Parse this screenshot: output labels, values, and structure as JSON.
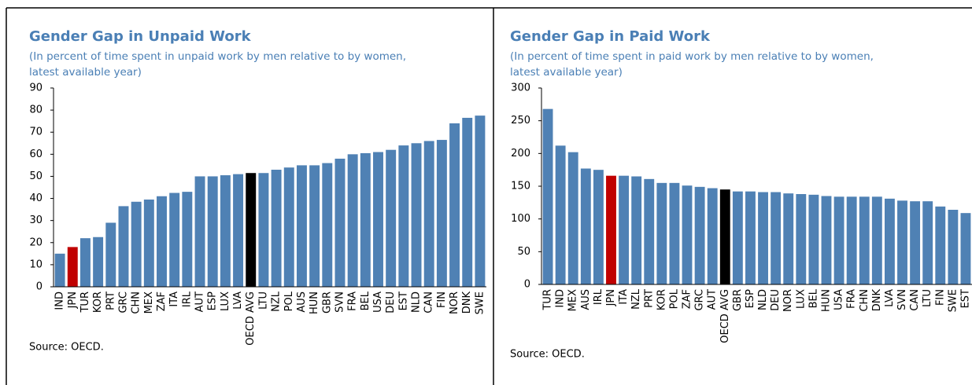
{
  "chart_data": [
    {
      "type": "bar",
      "title": "Gender Gap in Unpaid Work",
      "subtitle": [
        "(In percent of time spent in unpaid work by men relative to by women,",
        "latest available year)"
      ],
      "categories": [
        "IND",
        "JPN",
        "TUR",
        "KOR",
        "PRT",
        "GRC",
        "CHN",
        "MEX",
        "ZAF",
        "ITA",
        "IRL",
        "AUT",
        "ESP",
        "LUX",
        "LVA",
        "OECD AVG",
        "LTU",
        "NZL",
        "POL",
        "AUS",
        "HUN",
        "GBR",
        "SVN",
        "FRA",
        "BEL",
        "USA",
        "DEU",
        "EST",
        "NLD",
        "CAN",
        "FIN",
        "NOR",
        "DNK",
        "SWE"
      ],
      "values": [
        15,
        18,
        22,
        22.5,
        29,
        36.5,
        38.5,
        39.5,
        41,
        42.5,
        43,
        50,
        50,
        50.5,
        51,
        51.5,
        51.5,
        53,
        54,
        55,
        55,
        56,
        58,
        60,
        60.5,
        61,
        62,
        64,
        65,
        66,
        66.5,
        74,
        76.5,
        77.5
      ],
      "colors": [
        "#4f81b4",
        "#c00000",
        "#4f81b4",
        "#4f81b4",
        "#4f81b4",
        "#4f81b4",
        "#4f81b4",
        "#4f81b4",
        "#4f81b4",
        "#4f81b4",
        "#4f81b4",
        "#4f81b4",
        "#4f81b4",
        "#4f81b4",
        "#4f81b4",
        "#000000",
        "#4f81b4",
        "#4f81b4",
        "#4f81b4",
        "#4f81b4",
        "#4f81b4",
        "#4f81b4",
        "#4f81b4",
        "#4f81b4",
        "#4f81b4",
        "#4f81b4",
        "#4f81b4",
        "#4f81b4",
        "#4f81b4",
        "#4f81b4",
        "#4f81b4",
        "#4f81b4",
        "#4f81b4",
        "#4f81b4"
      ],
      "ylim": [
        0,
        90
      ],
      "yticks": [
        0,
        10,
        20,
        30,
        40,
        50,
        60,
        70,
        80,
        90
      ],
      "grid": false,
      "source": "Source: OECD."
    },
    {
      "type": "bar",
      "title": "Gender Gap in Paid Work",
      "subtitle": [
        "(In percent of time spent in paid work by men relative to by women,",
        "latest available year)"
      ],
      "categories": [
        "TUR",
        "IND",
        "MEX",
        "AUS",
        "IRL",
        "JPN",
        "ITA",
        "NZL",
        "PRT",
        "KOR",
        "POL",
        "ZAF",
        "GRC",
        "AUT",
        "OECD AVG",
        "GBR",
        "ESP",
        "NLD",
        "DEU",
        "NOR",
        "LUX",
        "BEL",
        "HUN",
        "USA",
        "FRA",
        "CHN",
        "DNK",
        "LVA",
        "SVN",
        "CAN",
        "LTU",
        "FIN",
        "SWE",
        "EST"
      ],
      "values": [
        268,
        212,
        202,
        177,
        175,
        166,
        166,
        165,
        161,
        155,
        155,
        151,
        149,
        147,
        145,
        142,
        142,
        141,
        141,
        139,
        138,
        137,
        135,
        134,
        134,
        134,
        134,
        131,
        128,
        127,
        127,
        119,
        114,
        109
      ],
      "colors": [
        "#4f81b4",
        "#4f81b4",
        "#4f81b4",
        "#4f81b4",
        "#4f81b4",
        "#c00000",
        "#4f81b4",
        "#4f81b4",
        "#4f81b4",
        "#4f81b4",
        "#4f81b4",
        "#4f81b4",
        "#4f81b4",
        "#4f81b4",
        "#000000",
        "#4f81b4",
        "#4f81b4",
        "#4f81b4",
        "#4f81b4",
        "#4f81b4",
        "#4f81b4",
        "#4f81b4",
        "#4f81b4",
        "#4f81b4",
        "#4f81b4",
        "#4f81b4",
        "#4f81b4",
        "#4f81b4",
        "#4f81b4",
        "#4f81b4",
        "#4f81b4",
        "#4f81b4",
        "#4f81b4",
        "#4f81b4"
      ],
      "ylim": [
        0,
        300
      ],
      "yticks": [
        0,
        50,
        100,
        150,
        200,
        250,
        300
      ],
      "grid": false,
      "source": "Source: OECD."
    }
  ]
}
